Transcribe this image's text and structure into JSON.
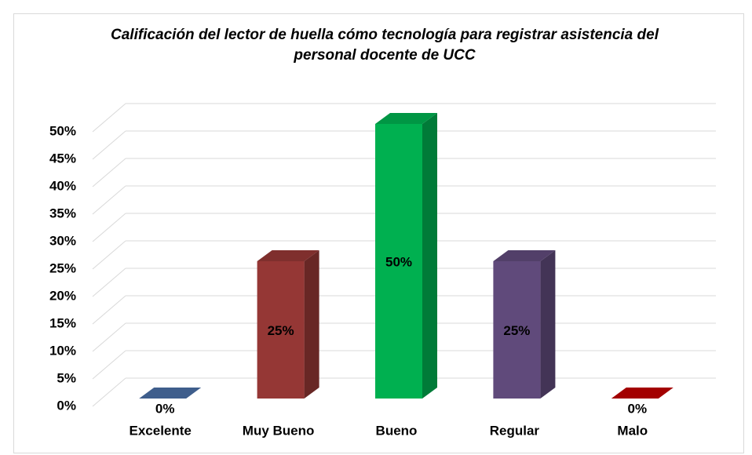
{
  "chart_data": {
    "type": "bar3d",
    "title": "Calificación del lector de huella cómo tecnología para registrar asistencia del personal docente de UCC",
    "categories": [
      "Excelente",
      "Muy Bueno",
      "Bueno",
      "Regular",
      "Malo"
    ],
    "values": [
      0,
      25,
      50,
      25,
      0
    ],
    "value_labels": [
      "0%",
      "25%",
      "50%",
      "25%",
      "0%"
    ],
    "colors": [
      "#4a6fa5",
      "#953735",
      "#00b050",
      "#604a7b",
      "#c00000"
    ],
    "ylim": [
      0,
      50
    ],
    "yticks": [
      {
        "value": 0,
        "label": "0%"
      },
      {
        "value": 5,
        "label": "5%"
      },
      {
        "value": 10,
        "label": "10%"
      },
      {
        "value": 15,
        "label": "15%"
      },
      {
        "value": 20,
        "label": "20%"
      },
      {
        "value": 25,
        "label": "25%"
      },
      {
        "value": 30,
        "label": "30%"
      },
      {
        "value": 35,
        "label": "35%"
      },
      {
        "value": 40,
        "label": "40%"
      },
      {
        "value": 45,
        "label": "45%"
      },
      {
        "value": 50,
        "label": "50%"
      }
    ],
    "grid": true
  }
}
